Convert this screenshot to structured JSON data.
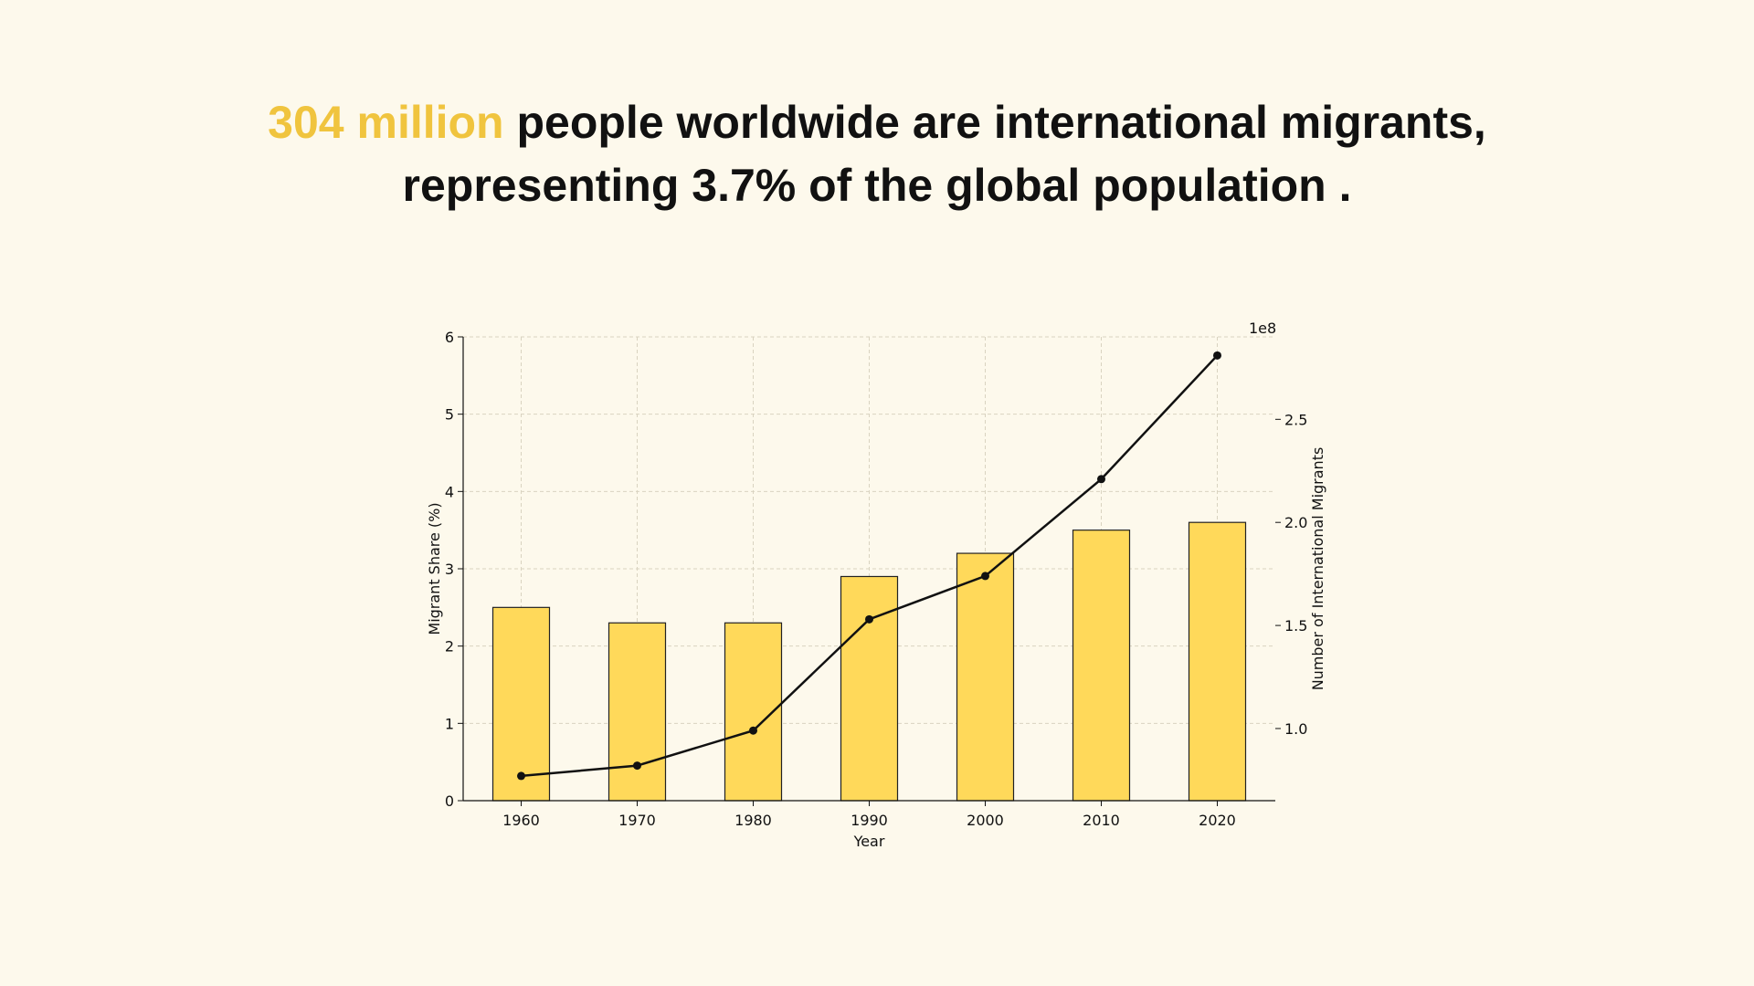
{
  "headline": {
    "highlight": "304 million",
    "line1_rest": " people worldwide are international migrants,",
    "line2": "representing 3.7% of the global population ."
  },
  "colors": {
    "background": "#fdf9ec",
    "highlight": "#f0c43e",
    "bar_fill": "#ffd95a",
    "line": "#111111"
  },
  "chart_data": {
    "type": "bar",
    "categories": [
      "1960",
      "1970",
      "1980",
      "1990",
      "2000",
      "2010",
      "2020"
    ],
    "xlabel": "Year",
    "ylabel": "Migrant Share (%)",
    "ylim": [
      0,
      6
    ],
    "yticks": [
      "0",
      "1",
      "2",
      "3",
      "4",
      "5",
      "6"
    ],
    "grid": true,
    "series": [
      {
        "type": "bar",
        "axis": "left",
        "values": [
          2.5,
          2.3,
          2.3,
          2.9,
          3.2,
          3.5,
          3.6
        ]
      },
      {
        "type": "line",
        "axis": "right",
        "values": [
          77000000,
          82000000,
          99000000,
          153000000,
          174000000,
          221000000,
          281000000
        ]
      }
    ],
    "y2label": "Number of International Migrants",
    "y2lim": [
      65000000,
      290000000
    ],
    "y2ticks": [
      100000000,
      150000000,
      200000000,
      250000000
    ],
    "y2tick_labels": [
      "1.0",
      "1.5",
      "2.0",
      "2.5"
    ],
    "y2_offset_label": "1e8"
  }
}
